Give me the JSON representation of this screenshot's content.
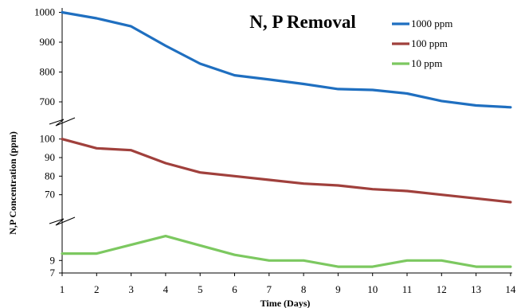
{
  "chart_data": {
    "type": "line",
    "title": "N, P Removal",
    "xlabel": "Time (Days)",
    "ylabel": "N,P Concentration (ppm)",
    "x": [
      1,
      2,
      3,
      4,
      5,
      6,
      7,
      8,
      9,
      10,
      11,
      12,
      13,
      14
    ],
    "xlim": [
      1,
      14
    ],
    "y_axis_breaks": true,
    "y_segments": [
      {
        "range": [
          660,
          1020
        ],
        "ticks": [
          700,
          800,
          900,
          1000
        ]
      },
      {
        "range": [
          60,
          105
        ],
        "ticks": [
          70,
          80,
          90,
          100
        ]
      },
      {
        "range": [
          7,
          14
        ],
        "ticks": [
          7,
          9
        ]
      }
    ],
    "series": [
      {
        "name": "1000 ppm",
        "color": "#1f6fc0",
        "segment": 0,
        "values": [
          1000,
          980,
          953,
          888,
          828,
          789,
          775,
          760,
          743,
          740,
          728,
          703,
          688,
          682
        ]
      },
      {
        "name": "100 ppm",
        "color": "#a0403c",
        "segment": 1,
        "values": [
          100,
          95,
          94,
          87,
          82,
          80,
          78,
          76,
          75,
          73,
          72,
          70,
          68,
          66
        ]
      },
      {
        "name": "10 ppm",
        "color": "#7cc860",
        "segment": 2,
        "values": [
          10.1,
          10.1,
          11.5,
          12.9,
          11.4,
          9.9,
          9,
          9,
          8,
          8,
          9,
          9,
          8,
          8
        ]
      }
    ],
    "legend_position": "top-right",
    "grid": false
  }
}
